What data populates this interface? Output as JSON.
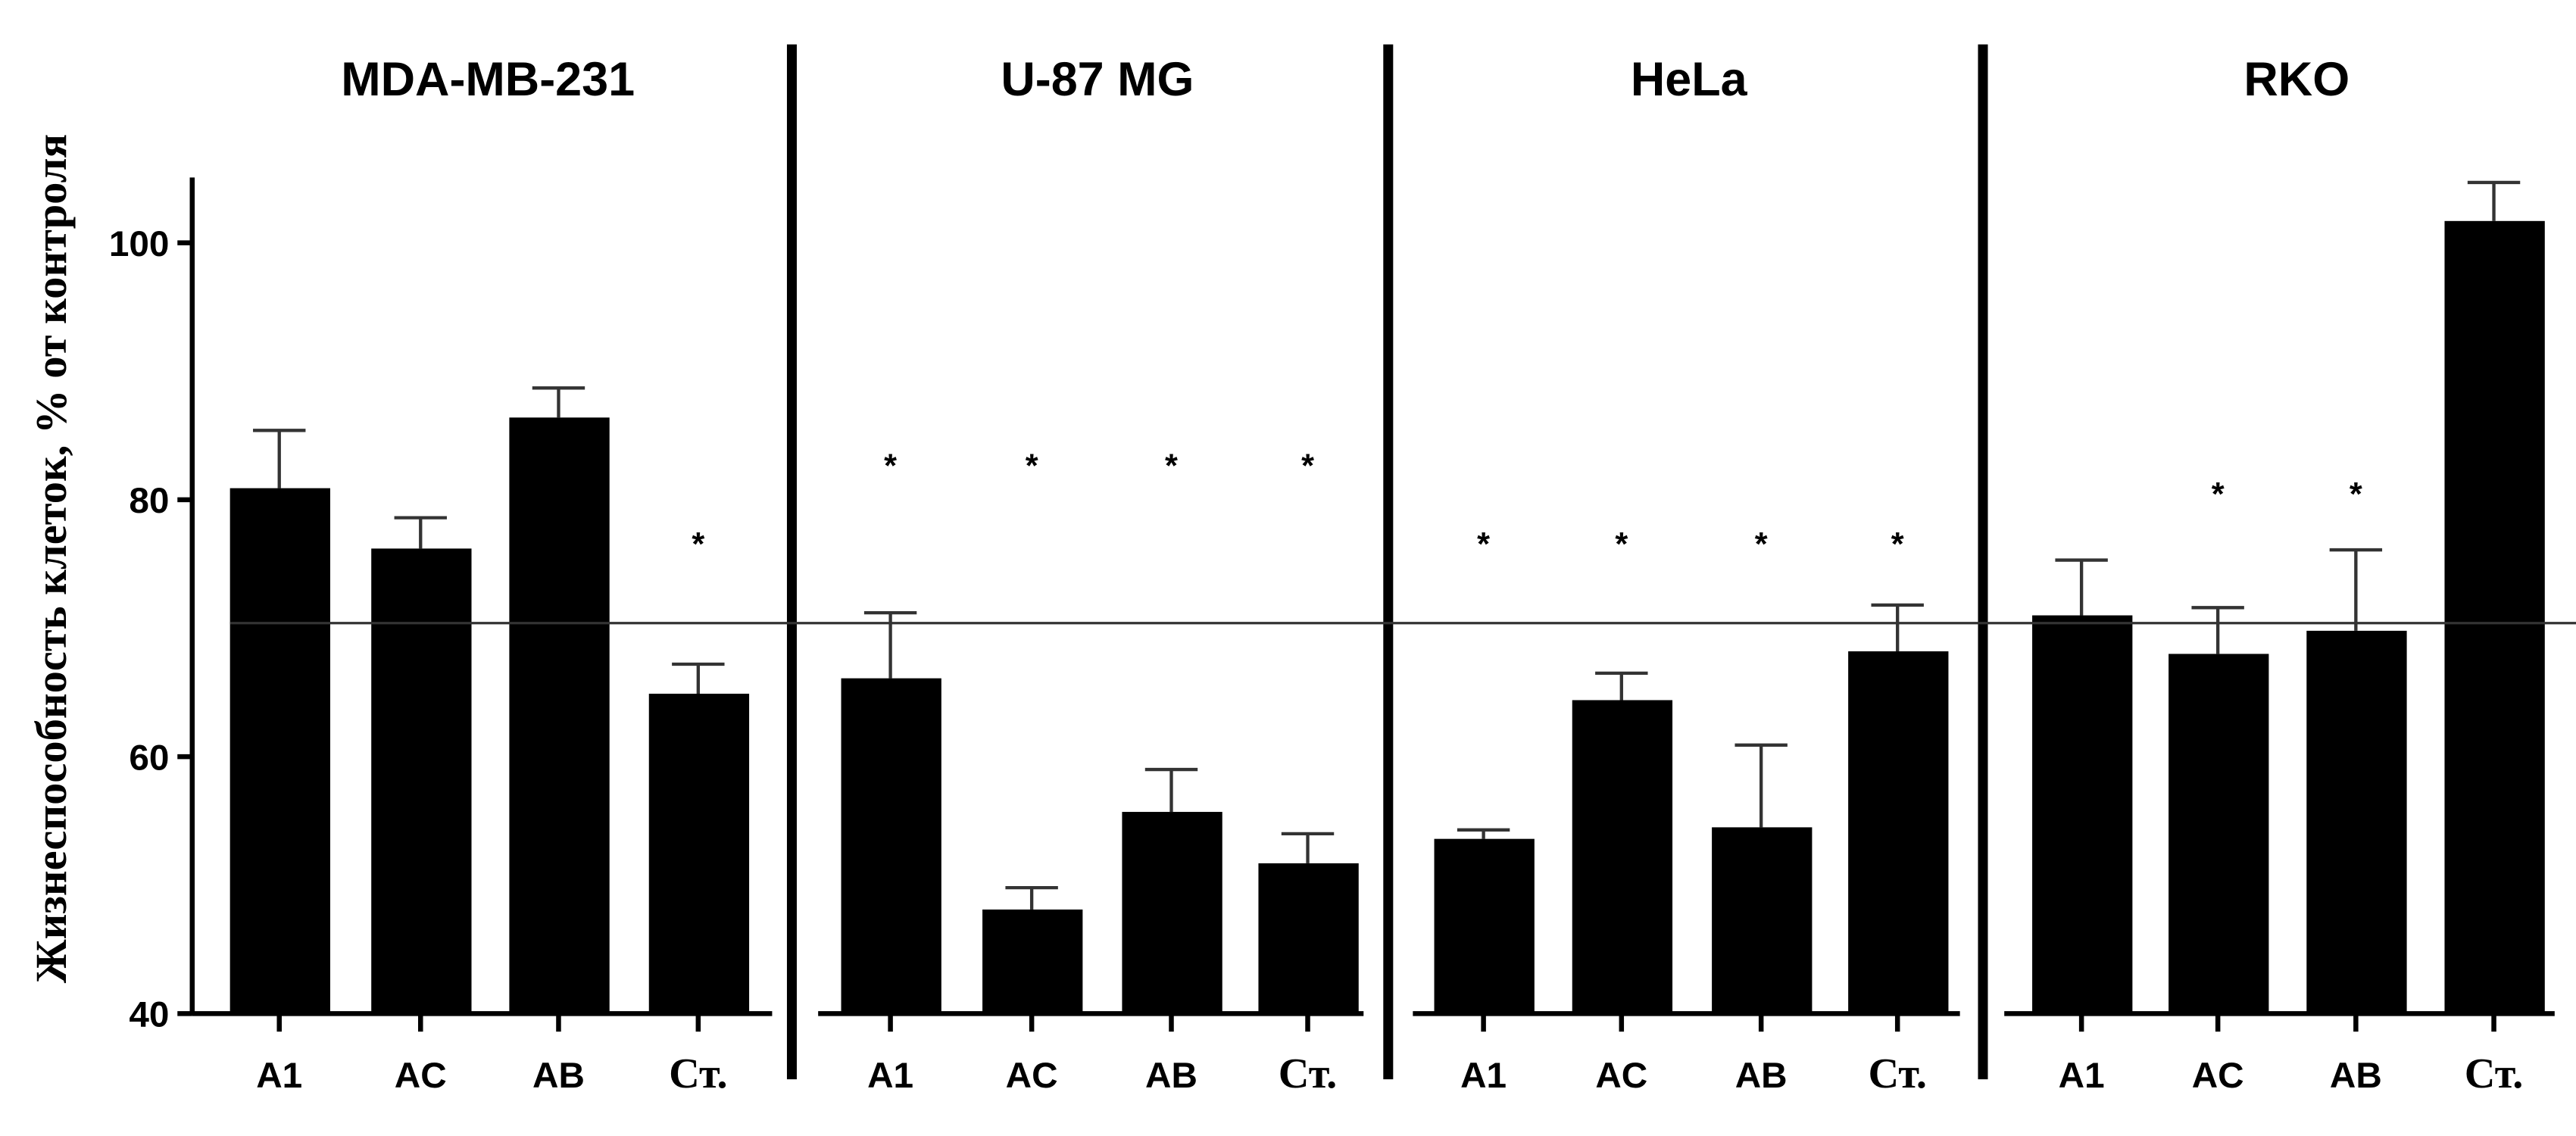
{
  "chart_data": {
    "type": "bar",
    "ylabel": "Жизнеспособность клеток, % от контроля",
    "ylim": [
      40,
      105
    ],
    "yticks": [
      40,
      60,
      80,
      100
    ],
    "ytick_labels": [
      "40",
      "60",
      "80",
      "100"
    ],
    "reference_line": 70.4,
    "categories": [
      "A1",
      "AC",
      "AB",
      "Ст."
    ],
    "significance_marker": "*",
    "panels": [
      {
        "title": "MDA-MB-231",
        "values": [
          80.9,
          76.2,
          86.4,
          64.9
        ],
        "errors": [
          4.5,
          2.4,
          2.3,
          2.3
        ],
        "significant": [
          false,
          false,
          false,
          true
        ],
        "marker_level": 76.7
      },
      {
        "title": "U-87 MG",
        "values": [
          66.1,
          48.1,
          55.7,
          51.7
        ],
        "errors": [
          5.1,
          1.7,
          3.3,
          2.3
        ],
        "significant": [
          true,
          true,
          true,
          true
        ],
        "marker_level": 82.8
      },
      {
        "title": "HeLa",
        "values": [
          53.6,
          64.4,
          54.5,
          68.2
        ],
        "errors": [
          0.7,
          2.1,
          6.4,
          3.6
        ],
        "significant": [
          true,
          true,
          true,
          true
        ],
        "marker_level": 76.7
      },
      {
        "title": "RKO",
        "values": [
          71.0,
          68.0,
          69.8,
          101.7
        ],
        "errors": [
          4.3,
          3.6,
          6.3,
          3.0
        ],
        "significant": [
          false,
          true,
          true,
          false
        ],
        "marker_level": 80.6
      }
    ]
  }
}
